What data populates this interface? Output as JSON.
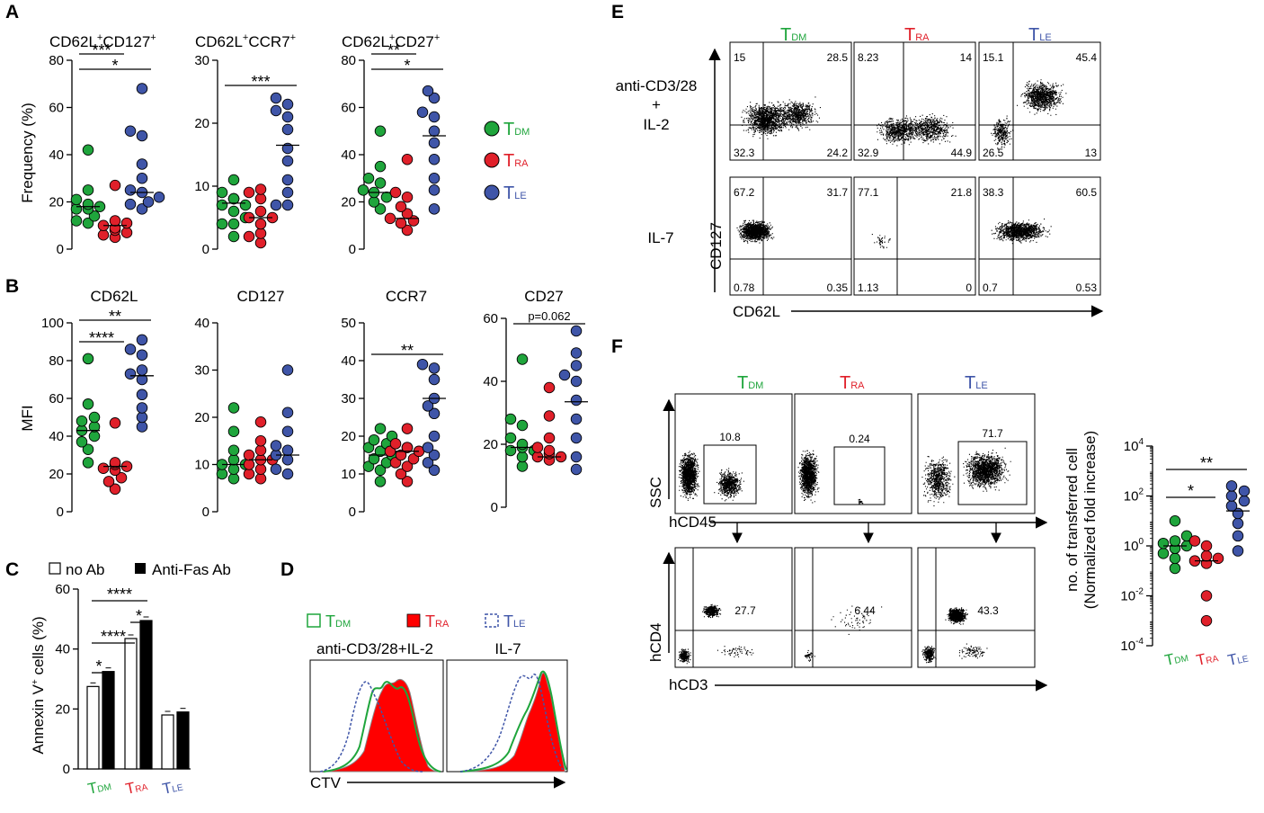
{
  "figure": {
    "panel_labels": {
      "A": "A",
      "B": "B",
      "C": "C",
      "D": "D",
      "E": "E",
      "F": "F"
    },
    "groups": [
      {
        "name": "T",
        "sub": "DM",
        "color": "#1fa53c"
      },
      {
        "name": "T",
        "sub": "RA",
        "color": "#e0202a"
      },
      {
        "name": "T",
        "sub": "LE",
        "color": "#3f55a8"
      }
    ],
    "colors": {
      "tdm": "#1fa53c",
      "tra": "#e0202a",
      "tle": "#3f55a8",
      "black": "#000000",
      "tra_fill": "#ff0000"
    },
    "ticks_0_80": [
      "0",
      "20",
      "40",
      "60",
      "80"
    ],
    "ticks_0_30": [
      "0",
      "10",
      "20",
      "30"
    ],
    "ticks_0_100": [
      "0",
      "20",
      "40",
      "60",
      "80",
      "100"
    ],
    "ticks_0_40": [
      "0",
      "10",
      "20",
      "30",
      "40"
    ],
    "ticks_0_50": [
      "0",
      "10",
      "20",
      "30",
      "40",
      "50"
    ],
    "ticks_0_60": [
      "0",
      "20",
      "40",
      "60"
    ],
    "stars": {
      "one": "*",
      "two": "**",
      "three": "***",
      "four": "****"
    },
    "panelA": {
      "ylabel": "Frequency (%)",
      "titles": [
        {
          "main": "CD62L",
          "sup1": "+",
          "mid": "CD127",
          "sup2": "+"
        },
        {
          "main": "CD62L",
          "sup1": "+",
          "mid": "CCR7",
          "sup2": "+"
        },
        {
          "main": "CD62L",
          "sup1": "+",
          "mid": "CD27",
          "sup2": "+"
        }
      ]
    },
    "panelB": {
      "ylabel": "MFI",
      "titles": [
        "CD62L",
        "CD127",
        "CCR7",
        "CD27"
      ],
      "pval": "p=0.062"
    },
    "panelC": {
      "legend_noab": "no Ab",
      "legend_fas": "Anti-Fas Ab",
      "ylabel_main": "Annexin V",
      "ylabel_sup": "+",
      "ylabel_rest": " cells (%)"
    },
    "panelD": {
      "left_title": "anti-CD3/28+IL-2",
      "right_title": "IL-7",
      "xlabel": "CTV"
    },
    "panelE": {
      "row1_label": [
        "anti-CD3/28",
        "+",
        "IL-2"
      ],
      "row2_label": "IL-7",
      "ylabel": "CD127",
      "xlabel": "CD62L",
      "quadrants": [
        [
          [
            "15",
            "28.5",
            "32.3",
            "24.2"
          ],
          [
            "8.23",
            "14",
            "32.9",
            "44.9"
          ],
          [
            "15.1",
            "45.4",
            "26.5",
            "13"
          ]
        ],
        [
          [
            "67.2",
            "31.7",
            "0.78",
            "0.35"
          ],
          [
            "77.1",
            "21.8",
            "1.13",
            "0"
          ],
          [
            "38.3",
            "60.5",
            "0.7",
            "0.53"
          ]
        ]
      ]
    },
    "panelF": {
      "gates_top": [
        "10.8",
        "0.24",
        "71.7"
      ],
      "gates_bottom": [
        "27.7",
        "6.44",
        "43.3"
      ],
      "row1_y": "SSC",
      "row1_x": "hCD45",
      "row2_y": "hCD4",
      "row2_x": "hCD3",
      "ylabel_1": "no. of transferred cell",
      "ylabel_2": "(Normalized fold increase)",
      "yticks": [
        {
          "base": "10",
          "exp": "4"
        },
        {
          "base": "10",
          "exp": "2"
        },
        {
          "base": "10",
          "exp": "0"
        },
        {
          "base": "10",
          "exp": "-2"
        },
        {
          "base": "10",
          "exp": "-4"
        }
      ]
    }
  },
  "chart_data": [
    {
      "id": "A1",
      "type": "scatter",
      "title": "CD62L+CD127+",
      "ylabel": "Frequency (%)",
      "ylim": [
        0,
        80
      ],
      "categories": [
        "TDM",
        "TRA",
        "TLE"
      ],
      "series": [
        {
          "name": "TDM",
          "values": [
            42,
            25,
            21,
            19,
            18,
            17,
            17,
            14,
            12,
            11
          ],
          "median": 18
        },
        {
          "name": "TRA",
          "values": [
            27,
            12,
            11,
            10,
            9,
            8,
            7,
            6,
            5
          ],
          "median": 10
        },
        {
          "name": "TLE",
          "values": [
            68,
            50,
            48,
            36,
            30,
            25,
            24,
            22,
            20,
            19,
            17
          ],
          "median": 24
        }
      ],
      "significance": [
        {
          "pair": [
            "TDM",
            "TLE"
          ],
          "label": "*"
        },
        {
          "pair": [
            "TDM",
            "TRA"
          ],
          "label": "***"
        }
      ]
    },
    {
      "id": "A2",
      "type": "scatter",
      "title": "CD62L+CCR7+",
      "ylim": [
        0,
        30
      ],
      "categories": [
        "TDM",
        "TRA",
        "TLE"
      ],
      "series": [
        {
          "name": "TDM",
          "values": [
            11,
            9,
            8,
            8,
            8,
            7,
            7,
            6,
            5,
            4,
            4,
            2
          ],
          "median": 7.3
        },
        {
          "name": "TRA",
          "values": [
            9.5,
            9,
            8,
            6,
            5,
            5,
            4,
            2.5,
            2,
            1
          ],
          "median": 5
        },
        {
          "name": "TLE",
          "values": [
            24,
            23,
            22,
            21,
            19,
            16,
            14,
            11,
            9,
            7,
            7
          ],
          "median": 16.5
        }
      ],
      "significance": [
        {
          "pair": [
            "TDM",
            "TLE"
          ],
          "label": "***"
        }
      ]
    },
    {
      "id": "A3",
      "type": "scatter",
      "title": "CD62L+CD27+",
      "ylim": [
        0,
        80
      ],
      "categories": [
        "TDM",
        "TRA",
        "TLE"
      ],
      "series": [
        {
          "name": "TDM",
          "values": [
            50,
            35,
            30,
            28,
            25,
            24,
            22,
            20,
            17
          ],
          "median": 24
        },
        {
          "name": "TRA",
          "values": [
            38,
            24,
            22,
            18,
            15,
            13,
            12,
            11,
            8
          ],
          "median": 13
        },
        {
          "name": "TLE",
          "values": [
            67,
            64,
            58,
            56,
            50,
            45,
            38,
            30,
            25,
            17
          ],
          "median": 48
        }
      ],
      "significance": [
        {
          "pair": [
            "TDM",
            "TLE"
          ],
          "label": "*"
        },
        {
          "pair": [
            "TDM",
            "TRA"
          ],
          "label": "**"
        }
      ]
    },
    {
      "id": "B1",
      "type": "scatter",
      "title": "CD62L",
      "ylabel": "MFI",
      "ylim": [
        0,
        100
      ],
      "categories": [
        "TDM",
        "TRA",
        "TLE"
      ],
      "series": [
        {
          "name": "TDM",
          "values": [
            81,
            57,
            50,
            48,
            45,
            43,
            40,
            37,
            33,
            26
          ],
          "median": 43
        },
        {
          "name": "TRA",
          "values": [
            47,
            26,
            25,
            24,
            23,
            22,
            18,
            16,
            12
          ],
          "median": 24
        },
        {
          "name": "TLE",
          "values": [
            91,
            86,
            83,
            75,
            73,
            70,
            62,
            55,
            50,
            45
          ],
          "median": 72
        }
      ],
      "significance": [
        {
          "pair": [
            "TDM",
            "TLE"
          ],
          "label": "**"
        },
        {
          "pair": [
            "TDM",
            "TRA"
          ],
          "label": "****"
        }
      ]
    },
    {
      "id": "B2",
      "type": "scatter",
      "title": "CD127",
      "ylim": [
        0,
        40
      ],
      "categories": [
        "TDM",
        "TRA",
        "TLE"
      ],
      "series": [
        {
          "name": "TDM",
          "values": [
            22,
            17,
            13,
            11,
            10,
            10,
            9,
            8,
            7
          ],
          "median": 10
        },
        {
          "name": "TRA",
          "values": [
            19,
            15,
            13,
            12,
            11,
            11,
            10,
            9,
            8,
            7
          ],
          "median": 11
        },
        {
          "name": "TLE",
          "values": [
            30,
            21,
            17,
            14,
            13,
            12,
            11,
            9,
            8
          ],
          "median": 12
        }
      ],
      "significance": []
    },
    {
      "id": "B3",
      "type": "scatter",
      "title": "CCR7",
      "ylim": [
        0,
        50
      ],
      "categories": [
        "TDM",
        "TRA",
        "TLE"
      ],
      "series": [
        {
          "name": "TDM",
          "values": [
            22,
            20,
            19,
            18,
            17,
            16,
            15,
            14,
            13,
            12,
            11,
            8
          ],
          "median": 15
        },
        {
          "name": "TRA",
          "values": [
            22,
            18,
            17,
            17,
            16,
            16,
            15,
            14,
            13,
            12,
            10,
            8
          ],
          "median": 16
        },
        {
          "name": "TLE",
          "values": [
            39,
            38,
            35,
            30,
            28,
            26,
            20,
            17,
            15,
            13,
            11
          ],
          "median": 30
        }
      ],
      "significance": [
        {
          "pair": [
            "TDM",
            "TLE"
          ],
          "label": "**"
        }
      ]
    },
    {
      "id": "B4",
      "type": "scatter",
      "title": "CD27",
      "ylim": [
        0,
        60
      ],
      "categories": [
        "TDM",
        "TRA",
        "TLE"
      ],
      "series": [
        {
          "name": "TDM",
          "values": [
            47,
            28,
            26,
            22,
            20,
            19,
            18,
            18,
            16,
            13
          ],
          "median": 19
        },
        {
          "name": "TRA",
          "values": [
            38,
            29,
            22,
            19,
            18,
            17,
            16,
            16,
            15
          ],
          "median": 16
        },
        {
          "name": "TLE",
          "values": [
            56,
            49,
            45,
            42,
            40,
            34,
            28,
            22,
            16,
            12
          ],
          "median": 33.5
        }
      ],
      "significance": [
        {
          "pair": [
            "TDM",
            "TLE"
          ],
          "label": "p=0.062"
        }
      ]
    },
    {
      "id": "C",
      "type": "bar",
      "ylabel": "Annexin V+ cells (%)",
      "ylim": [
        0,
        60
      ],
      "categories": [
        "TDM",
        "TRA",
        "TLE"
      ],
      "series": [
        {
          "name": "no Ab",
          "values": [
            27.5,
            43.5,
            18
          ]
        },
        {
          "name": "Anti-Fas Ab",
          "values": [
            32.5,
            49.5,
            19
          ]
        }
      ],
      "significance": [
        {
          "pair": [
            "TDM no Ab",
            "TDM Anti-Fas"
          ],
          "label": "*"
        },
        {
          "pair": [
            "TDM Anti-Fas",
            "TRA no Ab"
          ],
          "label": "****"
        },
        {
          "pair": [
            "TRA no Ab",
            "TRA Anti-Fas"
          ],
          "label": "*"
        },
        {
          "pair": [
            "TDM no Ab",
            "TRA Anti-Fas"
          ],
          "label": "****"
        }
      ]
    },
    {
      "id": "F_right",
      "type": "scatter",
      "ylabel": "no. of transferred cell (Normalized fold increase)",
      "yscale": "log",
      "ylim_log10": [
        -4,
        4
      ],
      "categories": [
        "TDM",
        "TRA",
        "TLE"
      ],
      "series": [
        {
          "name": "TDM",
          "values_log10": [
            1.0,
            0.4,
            0.2,
            0.1,
            0.0,
            -0.1,
            -0.3,
            -0.5,
            -0.9
          ],
          "median_log10": 0.0
        },
        {
          "name": "TRA",
          "values_log10": [
            0.2,
            0.0,
            -0.4,
            -0.5,
            -0.6,
            -0.7,
            -2.0,
            -3.0
          ],
          "median_log10": -0.6
        },
        {
          "name": "TLE",
          "values_log10": [
            2.4,
            2.2,
            2.0,
            1.8,
            1.6,
            1.3,
            0.9,
            0.4,
            -0.2
          ],
          "median_log10": 1.4
        }
      ],
      "significance": [
        {
          "pair": [
            "TDM",
            "TLE"
          ],
          "label": "**"
        },
        {
          "pair": [
            "TDM",
            "TRA"
          ],
          "label": "*"
        }
      ]
    }
  ]
}
